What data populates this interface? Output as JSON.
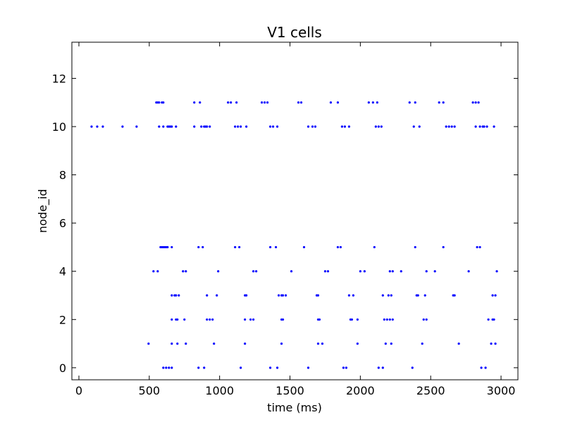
{
  "chart_data": {
    "type": "scatter",
    "title": "V1 cells",
    "xlabel": "time (ms)",
    "ylabel": "node_id",
    "xlim": [
      -50,
      3120
    ],
    "ylim": [
      -0.5,
      13.5
    ],
    "xticks": [
      0,
      500,
      1000,
      1500,
      2000,
      2500,
      3000
    ],
    "yticks": [
      0,
      2,
      4,
      6,
      8,
      10,
      12
    ],
    "grid": false,
    "legend": "none",
    "colors": {
      "marker": "#0000ff",
      "axis": "#000000",
      "background": "#ffffff"
    },
    "series": [
      {
        "x": [
          600,
          620,
          640,
          660,
          850,
          890,
          1150,
          1360,
          1410,
          1630,
          1880,
          1900,
          2130,
          2160,
          2370,
          2860,
          2890,
          495,
          660,
          700,
          760,
          960,
          1180,
          1440,
          1700,
          1730,
          1980,
          2180,
          2220,
          2440,
          2700,
          2930,
          2960,
          660,
          690,
          700,
          750,
          910,
          930,
          950,
          1180,
          1220,
          1240,
          1440,
          1450,
          1700,
          1710,
          1930,
          1940,
          1980,
          2170,
          2190,
          2210,
          2230,
          2450,
          2470,
          2910,
          2940,
          2950,
          660,
          680,
          690,
          710,
          910,
          980,
          1180,
          1190,
          1420,
          1440,
          1450,
          1470,
          1690,
          1700,
          1920,
          1950,
          2160,
          2200,
          2220,
          2400,
          2410,
          2460,
          2660,
          2670,
          2940,
          2960,
          530,
          560,
          740,
          760,
          990,
          1240,
          1260,
          1510,
          1750,
          1770,
          2000,
          2030,
          2210,
          2230,
          2290,
          2470,
          2530,
          2770,
          2970,
          580,
          590,
          600,
          610,
          620,
          630,
          660,
          850,
          880,
          1110,
          1140,
          1360,
          1400,
          1600,
          1840,
          1860,
          2100,
          2390,
          2590,
          2830,
          2850,
          90,
          130,
          170,
          310,
          410,
          570,
          600,
          630,
          640,
          650,
          660,
          690,
          820,
          870,
          890,
          900,
          910,
          930,
          1110,
          1130,
          1150,
          1190,
          1360,
          1380,
          1410,
          1630,
          1660,
          1680,
          1870,
          1890,
          1920,
          2110,
          2130,
          2150,
          2380,
          2420,
          2610,
          2630,
          2650,
          2670,
          2820,
          2850,
          2870,
          2880,
          2900,
          2950,
          550,
          560,
          570,
          590,
          600,
          820,
          860,
          1060,
          1080,
          1120,
          1300,
          1320,
          1340,
          1560,
          1580,
          1790,
          1840,
          2060,
          2090,
          2120,
          2350,
          2390,
          2560,
          2590,
          2800,
          2820,
          2840
        ],
        "y": [
          0,
          0,
          0,
          0,
          0,
          0,
          0,
          0,
          0,
          0,
          0,
          0,
          0,
          0,
          0,
          0,
          0,
          1,
          1,
          1,
          1,
          1,
          1,
          1,
          1,
          1,
          1,
          1,
          1,
          1,
          1,
          1,
          1,
          2,
          2,
          2,
          2,
          2,
          2,
          2,
          2,
          2,
          2,
          2,
          2,
          2,
          2,
          2,
          2,
          2,
          2,
          2,
          2,
          2,
          2,
          2,
          2,
          2,
          2,
          3,
          3,
          3,
          3,
          3,
          3,
          3,
          3,
          3,
          3,
          3,
          3,
          3,
          3,
          3,
          3,
          3,
          3,
          3,
          3,
          3,
          3,
          3,
          3,
          3,
          3,
          4,
          4,
          4,
          4,
          4,
          4,
          4,
          4,
          4,
          4,
          4,
          4,
          4,
          4,
          4,
          4,
          4,
          4,
          4,
          5,
          5,
          5,
          5,
          5,
          5,
          5,
          5,
          5,
          5,
          5,
          5,
          5,
          5,
          5,
          5,
          5,
          5,
          5,
          5,
          5,
          10,
          10,
          10,
          10,
          10,
          10,
          10,
          10,
          10,
          10,
          10,
          10,
          10,
          10,
          10,
          10,
          10,
          10,
          10,
          10,
          10,
          10,
          10,
          10,
          10,
          10,
          10,
          10,
          10,
          10,
          10,
          10,
          10,
          10,
          10,
          10,
          10,
          10,
          10,
          10,
          10,
          10,
          10,
          10,
          10,
          10,
          11,
          11,
          11,
          11,
          11,
          11,
          11,
          11,
          11,
          11,
          11,
          11,
          11,
          11,
          11,
          11,
          11,
          11,
          11,
          11,
          11,
          11,
          11,
          11,
          11,
          11,
          11
        ]
      }
    ]
  }
}
